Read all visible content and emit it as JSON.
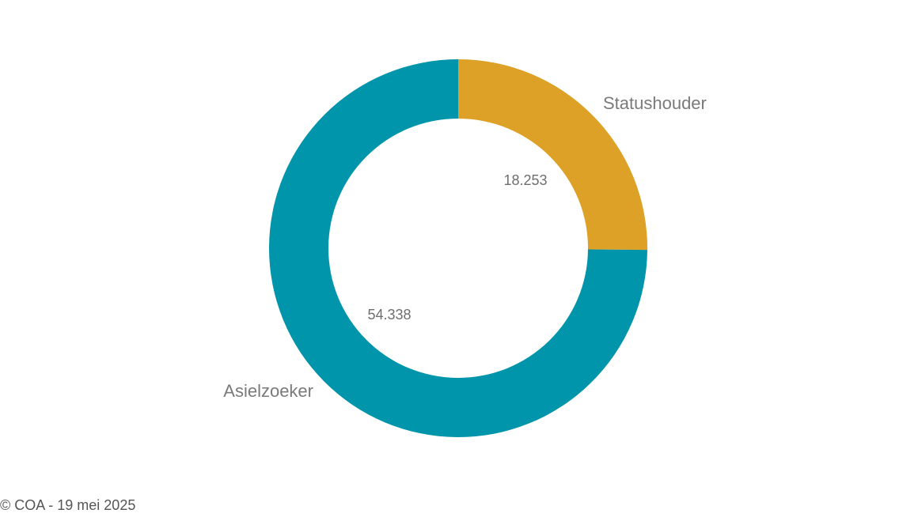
{
  "chart_data": {
    "type": "pie",
    "variant": "donut",
    "slices": [
      {
        "category": "Statushouder",
        "value": 18253,
        "value_label": "18.253",
        "color": "#DDA128"
      },
      {
        "category": "Asielzoeker",
        "value": 54338,
        "value_label": "54.338",
        "color": "#0095AA"
      }
    ],
    "start_angle_deg": 0,
    "direction": "clockwise"
  },
  "footer": {
    "copyright": "© COA - 19 mei 2025"
  }
}
